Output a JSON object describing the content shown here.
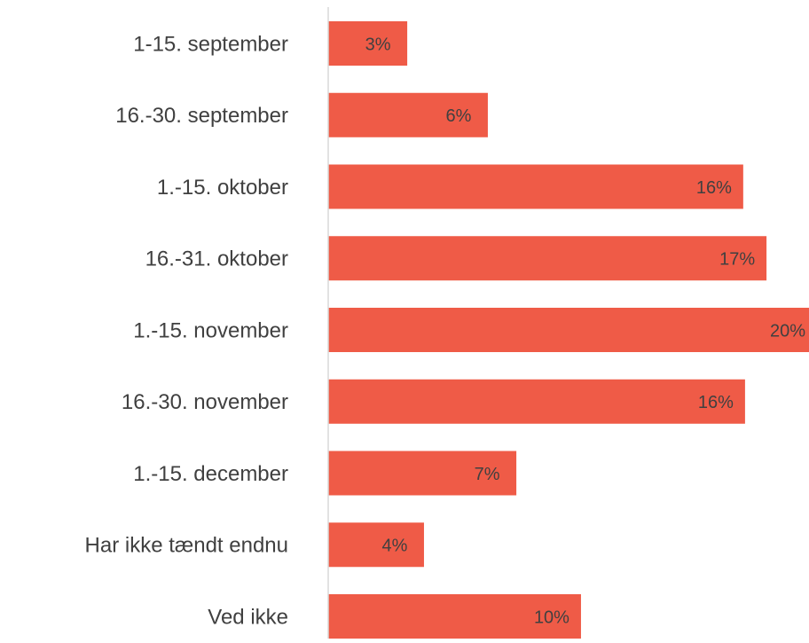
{
  "chart_data": {
    "type": "hbar",
    "categories": [
      "1-15. september",
      "16.-30. september",
      "1.-15. oktober",
      "16.-31. oktober",
      "1.-15. november",
      "16.-30. november",
      "1.-15. december",
      "Har ikke tændt endnu",
      "Ved ikke"
    ],
    "values": [
      3.02,
      6.1,
      15.86,
      16.75,
      20,
      15.93,
      7.19,
      3.66,
      9.66
    ],
    "value_labels": [
      "3%",
      "6%",
      "16%",
      "17%",
      "20%",
      "16%",
      "7%",
      "4%",
      "10%"
    ],
    "color": "#ef5b47",
    "xlim": [
      0,
      18.34
    ]
  }
}
